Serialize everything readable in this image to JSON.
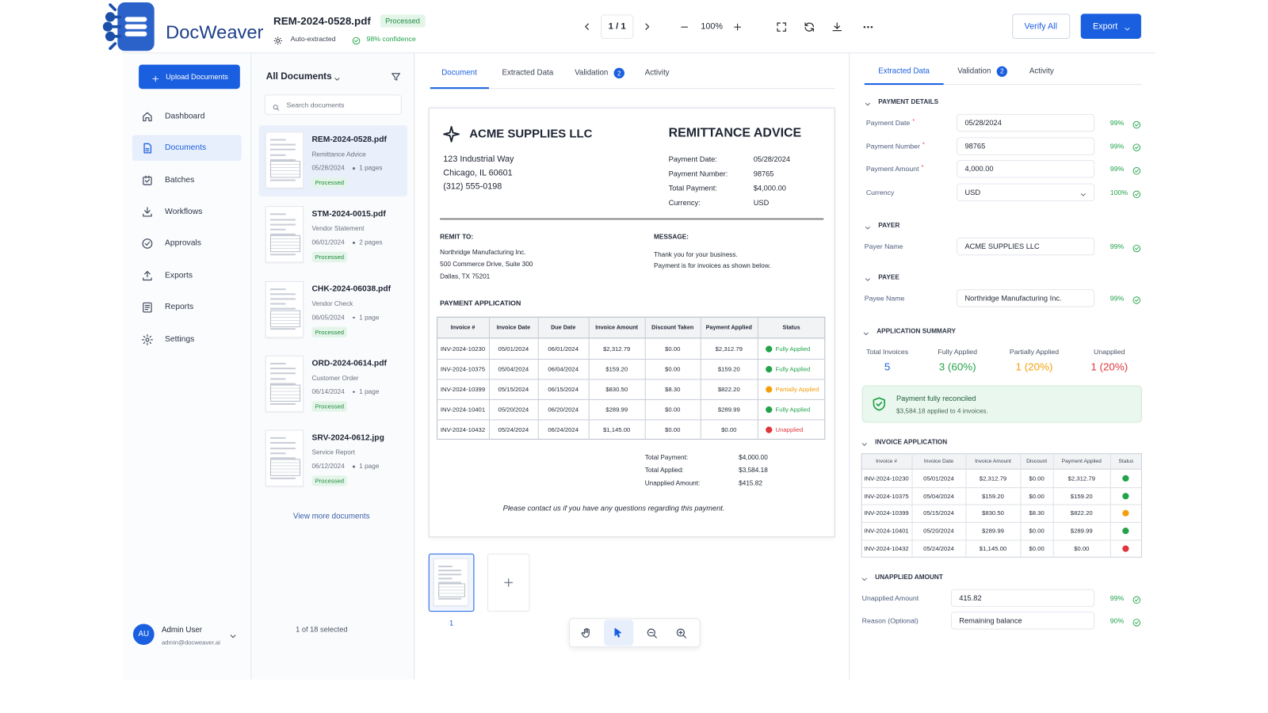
{
  "app": {
    "name": "DocWeaver"
  },
  "header": {
    "file_name": "REM-2024-0528.pdf",
    "status": "Processed",
    "extraction": "Auto-extracted",
    "confidence": "98% confidence",
    "page": "1 / 1",
    "zoom": "100%",
    "verify": "Verify All",
    "export": "Export"
  },
  "sidebar": {
    "upload": "Upload Documents",
    "nav": [
      "Dashboard",
      "Documents",
      "Batches",
      "Workflows",
      "Approvals",
      "Exports",
      "Reports",
      "Settings"
    ],
    "user": {
      "initials": "AU",
      "name": "Admin User",
      "email": "admin@docweaver.ai"
    }
  },
  "doc_list": {
    "filter": "All Documents",
    "search_placeholder": "Search documents",
    "items": [
      {
        "name": "REM-2024-0528.pdf",
        "type": "Remittance Advice",
        "date": "05/28/2024",
        "pages": "1 pages",
        "status": "Processed"
      },
      {
        "name": "STM-2024-0015.pdf",
        "type": "Vendor Statement",
        "date": "06/01/2024",
        "pages": "2 pages",
        "status": "Processed"
      },
      {
        "name": "CHK-2024-06038.pdf",
        "type": "Vendor Check",
        "date": "06/05/2024",
        "pages": "1 page",
        "status": "Processed"
      },
      {
        "name": "ORD-2024-0614.pdf",
        "type": "Customer Order",
        "date": "06/14/2024",
        "pages": "1 page",
        "status": "Processed"
      },
      {
        "name": "SRV-2024-0612.jpg",
        "type": "Service Report",
        "date": "06/12/2024",
        "pages": "1 page",
        "status": "Processed"
      }
    ],
    "view_more": "View more documents",
    "selection": "1 of 18 selected"
  },
  "viewer": {
    "tabs": [
      "Document",
      "Extracted Data",
      "Validation",
      "Activity"
    ],
    "validation_badge": 2,
    "thumbnail_page": "1"
  },
  "document": {
    "company": "ACME SUPPLIES LLC",
    "address": [
      "123 Industrial Way",
      "Chicago, IL 60601",
      "(312) 555-0198"
    ],
    "title": "REMITTANCE ADVICE",
    "fields": [
      [
        "Payment Date:",
        "05/28/2024"
      ],
      [
        "Payment Number:",
        "98765"
      ],
      [
        "Total Payment:",
        "$4,000.00"
      ],
      [
        "Currency:",
        "USD"
      ]
    ],
    "remit_to": {
      "label": "REMIT TO:",
      "lines": [
        "Northridge Manufacturing Inc.",
        "500 Commerce Drive, Suite 300",
        "Dallas, TX 75201"
      ]
    },
    "message": {
      "label": "MESSAGE:",
      "lines": [
        "Thank you for your business.",
        "Payment is for invoices as shown below."
      ]
    },
    "application_title": "PAYMENT APPLICATION",
    "columns": [
      "Invoice #",
      "Invoice Date",
      "Due Date",
      "Invoice Amount",
      "Discount Taken",
      "Payment Applied",
      "Status"
    ],
    "rows": [
      [
        "INV-2024-10230",
        "05/01/2024",
        "06/01/2024",
        "$2,312.79",
        "$0.00",
        "$2,312.79"
      ],
      [
        "INV-2024-10375",
        "05/04/2024",
        "06/04/2024",
        "$159.20",
        "$0.00",
        "$159.20"
      ],
      [
        "INV-2024-10399",
        "05/15/2024",
        "06/15/2024",
        "$830.50",
        "$8.30",
        "$822.20"
      ],
      [
        "INV-2024-10401",
        "05/20/2024",
        "06/20/2024",
        "$289.99",
        "$0.00",
        "$289.99"
      ],
      [
        "INV-2024-10432",
        "05/24/2024",
        "06/24/2024",
        "$1,145.00",
        "$0.00",
        "$0.00"
      ]
    ],
    "statuses": [
      {
        "label": "Fully Applied",
        "color": "#22a34a"
      },
      {
        "label": "Fully Applied",
        "color": "#22a34a"
      },
      {
        "label": "Partially Applied",
        "color": "#f59e0b"
      },
      {
        "label": "Fully Applied",
        "color": "#22a34a"
      },
      {
        "label": "Unapplied",
        "color": "#e0353b"
      }
    ],
    "totals": [
      [
        "Total Payment:",
        "$4,000.00"
      ],
      [
        "Total Applied:",
        "$3,584.18"
      ],
      [
        "Unapplied Amount:",
        "$415.82"
      ]
    ],
    "note": "Please contact us if you have any questions regarding this payment."
  },
  "panel": {
    "tabs": [
      "Extracted Data",
      "Validation",
      "Activity"
    ],
    "validation_badge": 2,
    "payment_details": {
      "title": "PAYMENT DETAILS",
      "fields": [
        {
          "label": "Payment Date",
          "marker": "*",
          "value": "05/28/2024",
          "confidence": "99%"
        },
        {
          "label": "Payment Number",
          "marker": "*",
          "value": "98765",
          "confidence": "99%"
        },
        {
          "label": "Payment Amount",
          "marker": "*",
          "value": "4,000.00",
          "confidence": "99%"
        },
        {
          "label": "Currency",
          "value": "USD",
          "confidence": "100%"
        }
      ]
    },
    "payer": {
      "title": "PAYER",
      "label": "Payer Name",
      "value": "ACME SUPPLIES LLC",
      "confidence": "99%"
    },
    "payee": {
      "title": "PAYEE",
      "label": "Payee Name",
      "value": "Northridge Manufacturing Inc.",
      "confidence": "99%"
    },
    "summary": {
      "title": "APPLICATION SUMMARY",
      "items": [
        {
          "label": "Total Invoices",
          "value": "5",
          "color": "#1a5fe0"
        },
        {
          "label": "Fully Applied",
          "value": "3 (60%)",
          "color": "#22a34a"
        },
        {
          "label": "Partially Applied",
          "value": "1 (20%)",
          "color": "#f59e0b"
        },
        {
          "label": "Unapplied",
          "value": "1 (20%)",
          "color": "#e0353b"
        }
      ],
      "reconciled": "Payment fully reconciled",
      "reconciled_detail": "$3,584.18 applied to 4 invoices."
    },
    "invoice_application": {
      "title": "INVOICE APPLICATION",
      "columns": [
        "Invoice #",
        "Invoice Date",
        "Invoice Amount",
        "Discount",
        "Payment Applied",
        "Status"
      ],
      "rows": [
        [
          "INV-2024-10230",
          "05/01/2024",
          "$2,312.79",
          "$0.00",
          "$2,312.79"
        ],
        [
          "INV-2024-10375",
          "05/04/2024",
          "$159.20",
          "$0.00",
          "$159.20"
        ],
        [
          "INV-2024-10399",
          "05/15/2024",
          "$830.50",
          "$8.30",
          "$822.20"
        ],
        [
          "INV-2024-10401",
          "05/20/2024",
          "$289.99",
          "$0.00",
          "$289.99"
        ],
        [
          "INV-2024-10432",
          "05/24/2024",
          "$1,145.00",
          "$0.00",
          "$0.00"
        ]
      ],
      "status_colors": [
        "#22a34a",
        "#22a34a",
        "#f59e0b",
        "#22a34a",
        "#e0353b"
      ]
    },
    "unapplied": {
      "title": "UNAPPLIED AMOUNT",
      "fields": [
        {
          "label": "Unapplied Amount",
          "value": "415.82",
          "confidence": "99%"
        },
        {
          "label": "Reason (Optional)",
          "value": "Remaining balance",
          "confidence": "90%"
        }
      ]
    }
  }
}
